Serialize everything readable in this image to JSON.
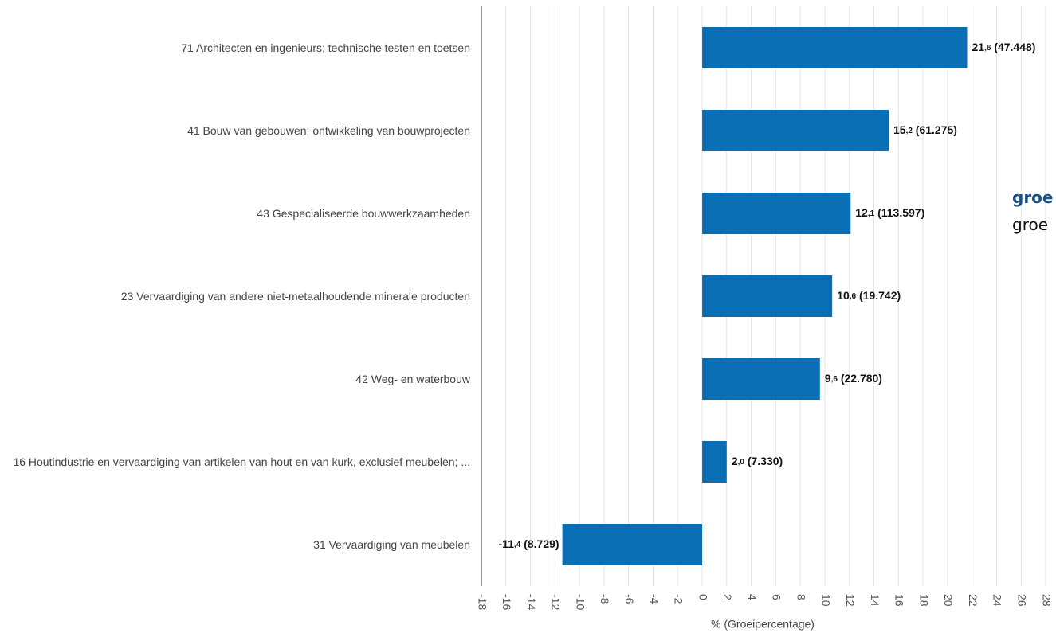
{
  "chart_data": {
    "type": "bar",
    "orientation": "horizontal",
    "categories": [
      "71 Architecten en ingenieurs; technische testen en toetsen",
      "41 Bouw van gebouwen; ontwikkeling van bouwprojecten",
      "43 Gespecialiseerde bouwwerkzaamheden",
      "23 Vervaardiging van andere niet-metaalhoudende minerale producten",
      "42 Weg- en waterbouw",
      "16 Houtindustrie en vervaardiging van artikelen van hout en van kurk, exclusief meubelen; ...",
      "31 Vervaardiging van meubelen"
    ],
    "values": [
      21.6,
      15.2,
      12.1,
      10.6,
      9.6,
      2.0,
      -11.4
    ],
    "value_labels": [
      "21,6 (47.448)",
      "15,2 (61.275)",
      "12,1 (113.597)",
      "10,6 (19.742)",
      "9,6 (22.780)",
      "2,0 (7.330)",
      "-11,4 (8.729)"
    ],
    "color": "#0a6eb4",
    "xlabel": "% (Groeipercentage)",
    "xlim": [
      -18,
      28
    ],
    "xticks": [
      -18,
      -16,
      -14,
      -12,
      -10,
      -8,
      -6,
      -4,
      -2,
      0,
      2,
      4,
      6,
      8,
      10,
      12,
      14,
      16,
      18,
      20,
      22,
      24,
      26,
      28
    ],
    "grid": true,
    "side_text": [
      "groe",
      "groe"
    ]
  }
}
